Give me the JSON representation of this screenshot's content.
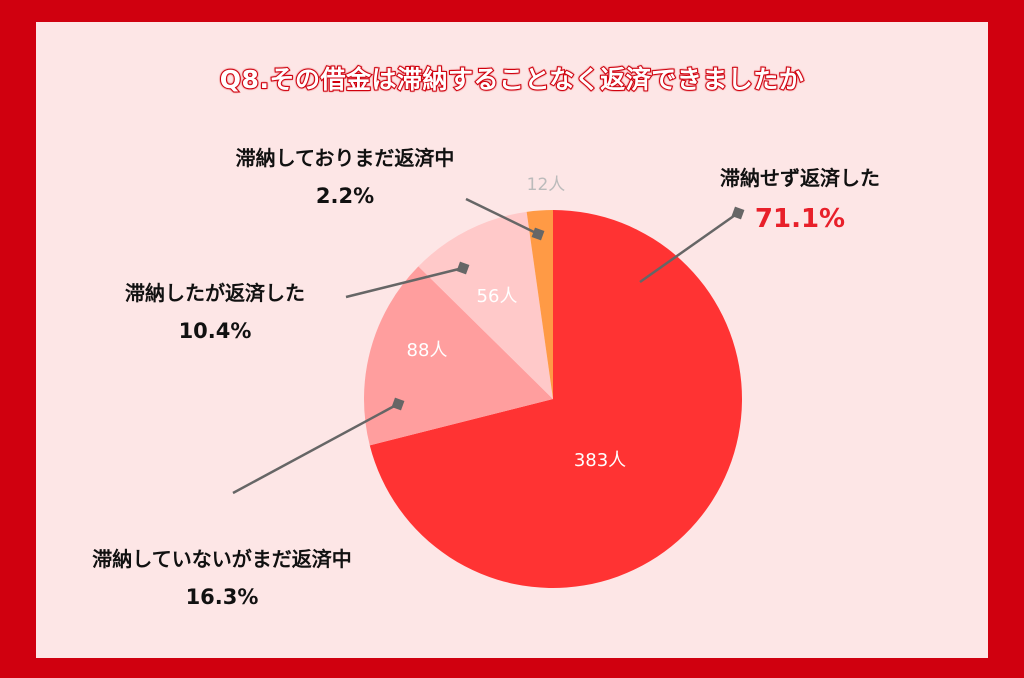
{
  "title": "Q8.その借金は滞納することなく返済できましたか",
  "colors": {
    "border": "#d0000f",
    "background": "#fde6e6",
    "accent_percent": "#e8202a",
    "leader_line": "#666666"
  },
  "chart_data": {
    "type": "pie",
    "title": "Q8.その借金は滞納することなく返済できましたか",
    "start": "12 o'clock",
    "direction": "clockwise",
    "slices": [
      {
        "label": "滞納せず返済した",
        "value": 383,
        "count_label": "383人",
        "percent": "71.1%",
        "color": "#ff3333",
        "count_color": "#ffffff"
      },
      {
        "label": "滞納していないがまだ返済中",
        "value": 88,
        "count_label": "88人",
        "percent": "16.3%",
        "color": "#ff9e9e",
        "count_color": "#ffffff"
      },
      {
        "label": "滞納したが返済した",
        "value": 56,
        "count_label": "56人",
        "percent": "10.4%",
        "color": "#ffc9c9",
        "count_color": "#ffffff"
      },
      {
        "label": "滞納しておりまだ返済中",
        "value": 12,
        "count_label": "12人",
        "percent": "2.2%",
        "color": "#ff9a45",
        "count_color": "#bbbbbb"
      }
    ]
  }
}
